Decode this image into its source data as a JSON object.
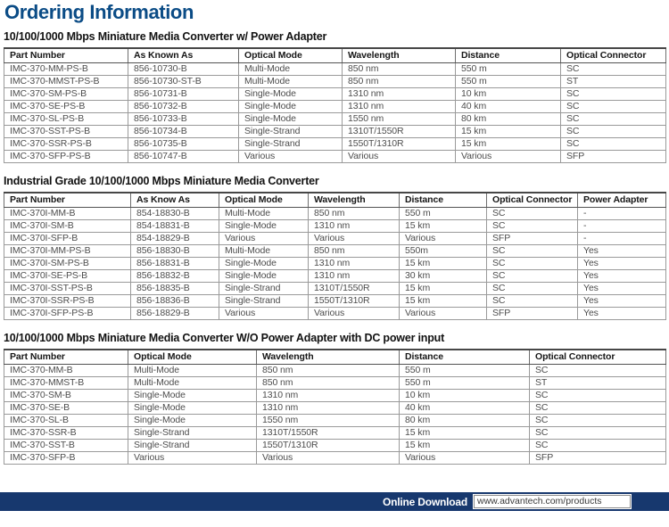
{
  "page_title": "Ordering Information",
  "colors": {
    "title_blue": "#0b4c86",
    "footer_navy": "#17386e",
    "header_text": "#161616",
    "body_text": "#4d4d4d"
  },
  "sections": [
    {
      "heading": "10/100/1000 Mbps Miniature Media Converter w/ Power Adapter",
      "columns": [
        "Part Number",
        "As Known As",
        "Optical Mode",
        "Wavelength",
        "Distance",
        "Optical Connector"
      ],
      "rows": [
        [
          "IMC-370-MM-PS-B",
          "856-10730-B",
          "Multi-Mode",
          "850 nm",
          "550 m",
          "SC"
        ],
        [
          "IMC-370-MMST-PS-B",
          "856-10730-ST-B",
          "Multi-Mode",
          "850 nm",
          "550 m",
          "ST"
        ],
        [
          "IMC-370-SM-PS-B",
          "856-10731-B",
          "Single-Mode",
          "1310 nm",
          "10 km",
          "SC"
        ],
        [
          "IMC-370-SE-PS-B",
          "856-10732-B",
          "Single-Mode",
          "1310 nm",
          "40 km",
          "SC"
        ],
        [
          "IMC-370-SL-PS-B",
          "856-10733-B",
          "Single-Mode",
          "1550 nm",
          "80 km",
          "SC"
        ],
        [
          "IMC-370-SST-PS-B",
          "856-10734-B",
          "Single-Strand",
          "1310T/1550R",
          "15 km",
          "SC"
        ],
        [
          "IMC-370-SSR-PS-B",
          "856-10735-B",
          "Single-Strand",
          "1550T/1310R",
          "15 km",
          "SC"
        ],
        [
          "IMC-370-SFP-PS-B",
          "856-10747-B",
          "Various",
          "Various",
          "Various",
          "SFP"
        ]
      ]
    },
    {
      "heading": "Industrial Grade 10/100/1000 Mbps Miniature Media Converter",
      "columns": [
        "Part Number",
        "As Know As",
        "Optical Mode",
        "Wavelength",
        "Distance",
        "Optical Connector",
        "Power Adapter"
      ],
      "rows": [
        [
          "IMC-370I-MM-B",
          "854-18830-B",
          "Multi-Mode",
          "850 nm",
          "550 m",
          "SC",
          "-"
        ],
        [
          "IMC-370I-SM-B",
          "854-18831-B",
          "Single-Mode",
          "1310 nm",
          "15 km",
          "SC",
          "-"
        ],
        [
          "IMC-370I-SFP-B",
          "854-18829-B",
          "Various",
          "Various",
          "Various",
          "SFP",
          "-"
        ],
        [
          "IMC-370I-MM-PS-B",
          "856-18830-B",
          "Multi-Mode",
          "850 nm",
          "550m",
          "SC",
          "Yes"
        ],
        [
          "IMC-370I-SM-PS-B",
          "856-18831-B",
          "Single-Mode",
          "1310 nm",
          "15 km",
          "SC",
          "Yes"
        ],
        [
          "IMC-370I-SE-PS-B",
          "856-18832-B",
          "Single-Mode",
          "1310 nm",
          "30 km",
          "SC",
          "Yes"
        ],
        [
          "IMC-370I-SST-PS-B",
          "856-18835-B",
          "Single-Strand",
          "1310T/1550R",
          "15 km",
          "SC",
          "Yes"
        ],
        [
          "IMC-370I-SSR-PS-B",
          "856-18836-B",
          "Single-Strand",
          "1550T/1310R",
          "15 km",
          "SC",
          "Yes"
        ],
        [
          "IMC-370I-SFP-PS-B",
          "856-18829-B",
          "Various",
          "Various",
          "Various",
          "SFP",
          "Yes"
        ]
      ]
    },
    {
      "heading": "10/100/1000 Mbps Miniature Media Converter W/O Power Adapter with DC power input",
      "columns": [
        "Part Number",
        "Optical Mode",
        "Wavelength",
        "Distance",
        "Optical Connector"
      ],
      "rows": [
        [
          "IMC-370-MM-B",
          "Multi-Mode",
          "850 nm",
          "550 m",
          "SC"
        ],
        [
          "IMC-370-MMST-B",
          "Multi-Mode",
          "850 nm",
          "550 m",
          "ST"
        ],
        [
          "IMC-370-SM-B",
          "Single-Mode",
          "1310 nm",
          "10 km",
          "SC"
        ],
        [
          "IMC-370-SE-B",
          "Single-Mode",
          "1310 nm",
          "40 km",
          "SC"
        ],
        [
          "IMC-370-SL-B",
          "Single-Mode",
          "1550 nm",
          "80 km",
          "SC"
        ],
        [
          "IMC-370-SSR-B",
          "Single-Strand",
          "1310T/1550R",
          "15 km",
          "SC"
        ],
        [
          "IMC-370-SST-B",
          "Single-Strand",
          "1550T/1310R",
          "15 km",
          "SC"
        ],
        [
          "IMC-370-SFP-B",
          "Various",
          "Various",
          "Various",
          "SFP"
        ]
      ]
    }
  ],
  "footer": {
    "button_label": "Online Download",
    "url": "www.advantech.com/products"
  }
}
